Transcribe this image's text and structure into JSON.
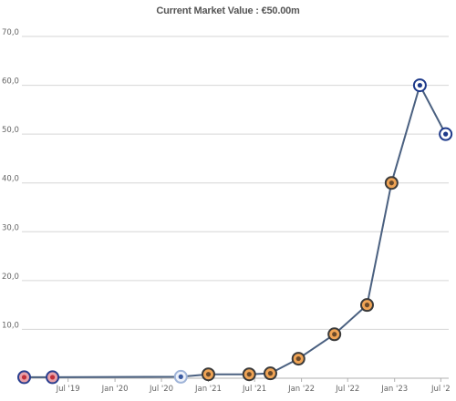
{
  "chart_data": {
    "type": "line",
    "title": "Current Market Value : €50.00m",
    "ylim": [
      0,
      70
    ],
    "yticks": [
      {
        "value": 0,
        "label": ""
      },
      {
        "value": 10,
        "label": "10,0"
      },
      {
        "value": 20,
        "label": "20,0"
      },
      {
        "value": 30,
        "label": "30,0"
      },
      {
        "value": 40,
        "label": "40,0"
      },
      {
        "value": 50,
        "label": "50,0"
      },
      {
        "value": 60,
        "label": "60,0"
      },
      {
        "value": 70,
        "label": "70,0"
      }
    ],
    "xlim": [
      "2019-01-01",
      "2023-08-01"
    ],
    "xticks": [
      {
        "date": "2019-07-01",
        "label": "Jul '19"
      },
      {
        "date": "2020-01-01",
        "label": "Jan '20"
      },
      {
        "date": "2020-07-01",
        "label": "Jul '20"
      },
      {
        "date": "2021-01-01",
        "label": "Jan '21"
      },
      {
        "date": "2021-07-01",
        "label": "Jul '21"
      },
      {
        "date": "2022-01-01",
        "label": "Jan '22"
      },
      {
        "date": "2022-07-01",
        "label": "Jul '22"
      },
      {
        "date": "2023-01-01",
        "label": "Jan '23"
      },
      {
        "date": "2023-07-01",
        "label": "Jul '2"
      }
    ],
    "grid": true,
    "line_color": "#4a6080",
    "series": [
      {
        "points": [
          {
            "date": "2019-01-10",
            "value": 0.2,
            "marker": "club-a"
          },
          {
            "date": "2019-05-01",
            "value": 0.2,
            "marker": "club-a"
          },
          {
            "date": "2020-09-15",
            "value": 0.3,
            "marker": "club-b"
          },
          {
            "date": "2021-01-01",
            "value": 0.8,
            "marker": "club-c"
          },
          {
            "date": "2021-06-10",
            "value": 0.8,
            "marker": "club-c"
          },
          {
            "date": "2021-09-01",
            "value": 1.0,
            "marker": "club-c"
          },
          {
            "date": "2021-12-20",
            "value": 4.0,
            "marker": "club-c"
          },
          {
            "date": "2022-05-10",
            "value": 9.0,
            "marker": "club-c"
          },
          {
            "date": "2022-09-15",
            "value": 15.0,
            "marker": "club-c"
          },
          {
            "date": "2022-12-20",
            "value": 40.0,
            "marker": "club-c"
          },
          {
            "date": "2023-04-10",
            "value": 60.0,
            "marker": "club-d"
          },
          {
            "date": "2023-07-20",
            "value": 50.0,
            "marker": "club-d"
          }
        ]
      }
    ]
  }
}
